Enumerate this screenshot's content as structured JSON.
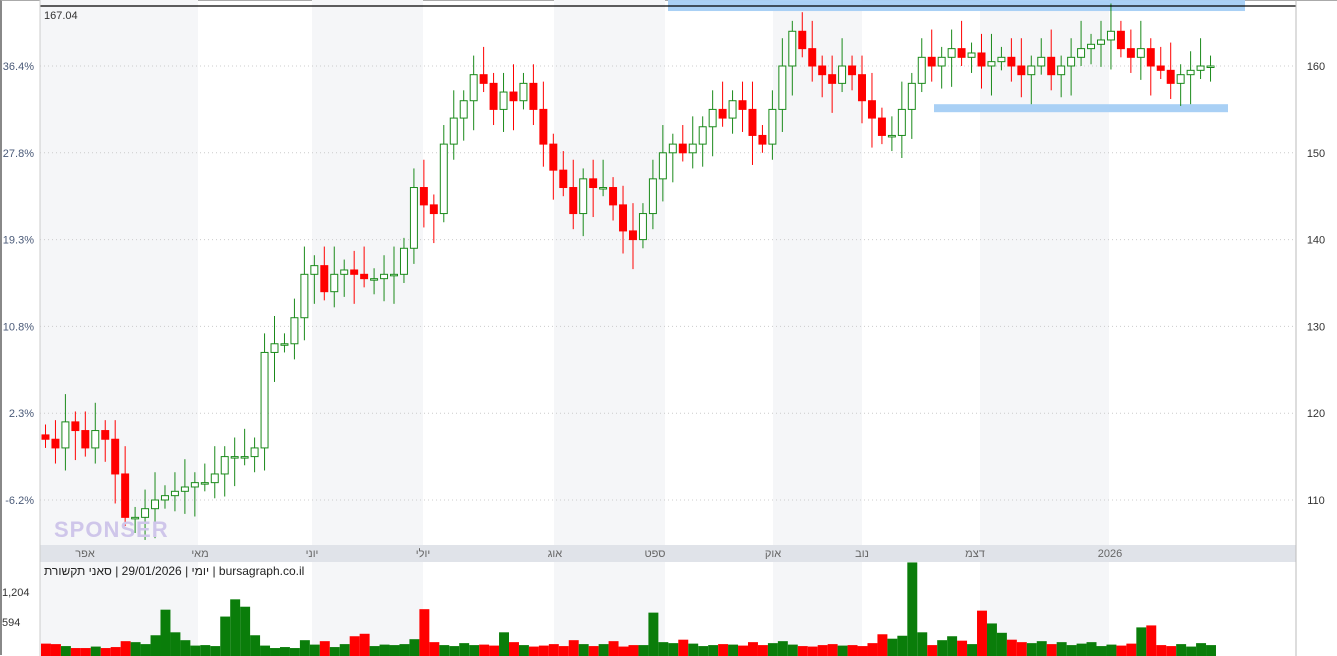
{
  "chart_data": {
    "type": "candlestick",
    "top_label": "167.04",
    "caption": "יומי | 29/01/2026 | סאני תקשורת | bursagraph.co.il",
    "watermark": "SPONSER",
    "right_axis": {
      "ticks": [
        110,
        120,
        130,
        140,
        150,
        160
      ]
    },
    "left_axis": {
      "ticks": [
        "-6.2%",
        "2.3%",
        "10.8%",
        "19.3%",
        "27.8%",
        "36.4%"
      ]
    },
    "volume_axis": {
      "ticks": [
        "594",
        "1,204"
      ],
      "values": [
        594,
        1204
      ]
    },
    "months": [
      "אפר",
      "מאי",
      "יוני",
      "יולי",
      "אוג",
      "ספט",
      "אוק",
      "נוב",
      "דצמ",
      "2026"
    ],
    "closes": [
      117,
      116,
      119,
      118,
      116,
      118,
      117,
      113,
      108,
      108,
      109,
      110,
      110.5,
      111,
      111.5,
      112,
      112,
      113,
      115,
      115,
      115,
      116,
      127,
      128,
      128,
      131,
      136,
      137,
      134,
      136,
      136.5,
      136,
      135.5,
      135.5,
      136,
      136,
      139,
      146,
      144,
      143,
      151,
      154,
      156,
      159,
      158,
      155,
      157,
      156,
      158,
      155,
      151,
      148,
      146,
      143,
      147,
      146,
      146,
      144,
      141,
      140,
      143,
      147,
      150,
      151,
      150,
      151,
      153,
      155,
      154,
      156,
      155,
      152,
      151,
      155,
      160,
      164,
      162,
      160,
      159,
      158,
      160,
      159,
      156,
      154,
      152,
      152,
      155,
      158,
      161,
      160,
      161,
      162,
      161,
      161.5,
      160,
      160.5,
      161,
      160,
      159,
      160,
      161,
      159,
      160,
      161,
      162,
      162.5,
      163,
      164,
      162,
      161,
      162,
      160,
      159.5,
      158,
      159,
      159.5,
      160,
      160
    ],
    "volumes": [
      150,
      140,
      100,
      60,
      60,
      90,
      60,
      80,
      200,
      180,
      140,
      320,
      840,
      380,
      220,
      110,
      120,
      100,
      700,
      1050,
      900,
      320,
      110,
      60,
      80,
      60,
      220,
      130,
      200,
      80,
      140,
      300,
      350,
      100,
      130,
      120,
      140,
      240,
      850,
      180,
      120,
      100,
      160,
      120,
      130,
      110,
      380,
      180,
      120,
      90,
      110,
      140,
      100,
      220,
      140,
      100,
      140,
      200,
      90,
      120,
      120,
      780,
      180,
      160,
      230,
      150,
      100,
      120,
      140,
      130,
      110,
      180,
      120,
      160,
      200,
      130,
      100,
      90,
      120,
      140,
      110,
      120,
      100,
      160,
      340,
      250,
      310,
      1800,
      380,
      120,
      220,
      300,
      210,
      140,
      820,
      560,
      370,
      230,
      180,
      160,
      200,
      140,
      180,
      120,
      150,
      180,
      100,
      130,
      110,
      150,
      480,
      520,
      120,
      100,
      140,
      90,
      160,
      120
    ],
    "highlights": [
      {
        "from_price": 166.4,
        "to_price": 167.6,
        "label": ""
      },
      {
        "from_price": 154.6,
        "to_price": 155.6,
        "label": ""
      }
    ],
    "colors": {
      "up": "#1a8a1a",
      "down": "#ff0000",
      "highlight": "#a9d0f5",
      "band": "#f5f6f8",
      "month_bar": "#e0e3e9"
    }
  }
}
